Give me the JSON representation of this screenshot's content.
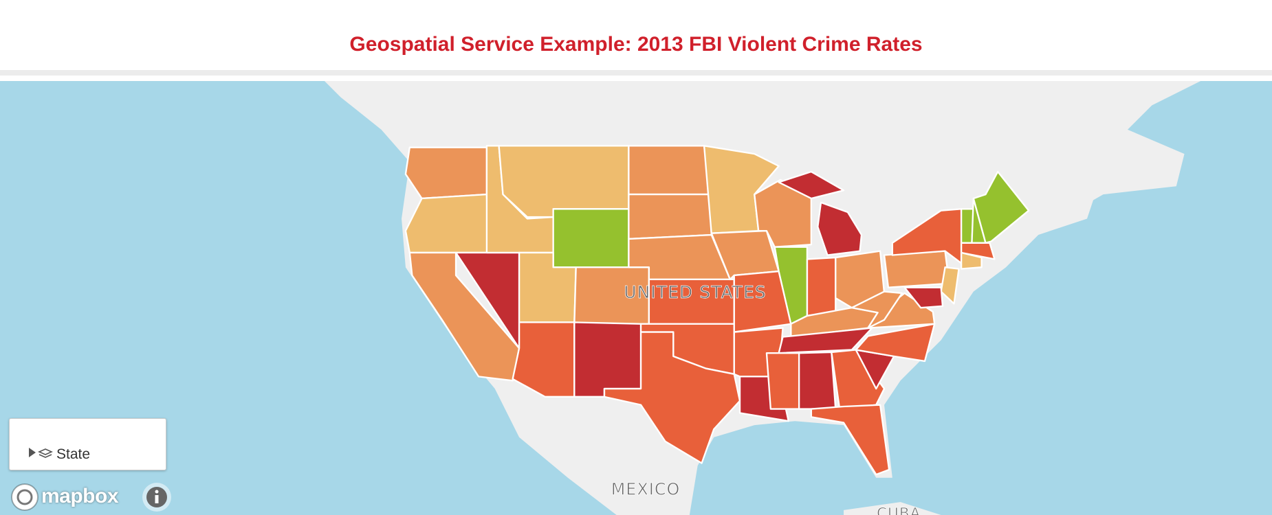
{
  "header": {
    "title": "Geospatial Service Example: 2013 FBI Violent Crime Rates"
  },
  "map": {
    "labels": [
      "UNITED STATES",
      "MEXICO",
      "CUBA"
    ]
  },
  "legend": {
    "layer_name": "State"
  },
  "attribution": "mapbox"
}
